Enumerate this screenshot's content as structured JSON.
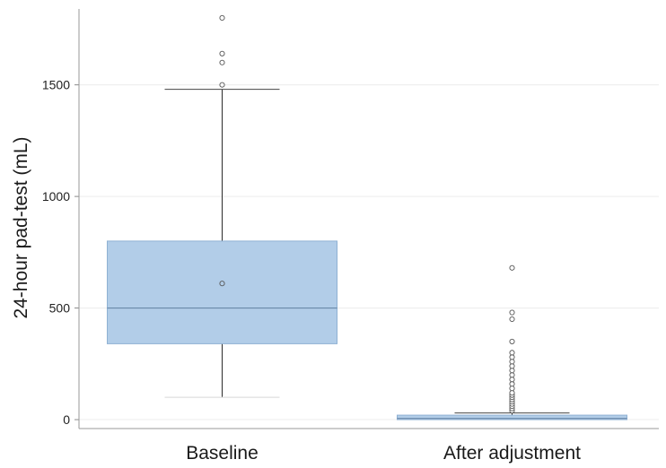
{
  "chart_data": {
    "type": "box",
    "ylabel": "24-hour pad-test (mL)",
    "xlabel": "",
    "ylim": [
      -40,
      1840
    ],
    "yticks": [
      0,
      500,
      1000,
      1500
    ],
    "grid": true,
    "box_color": "#b2cde8",
    "box_stroke": "#8fb1d3",
    "groups": [
      {
        "label": "Baseline",
        "whisker_low": 100,
        "q1": 340,
        "median": 500,
        "q3": 800,
        "whisker_high": 1480,
        "mean": 610,
        "outliers": [
          1500,
          1600,
          1640,
          1800
        ]
      },
      {
        "label": "After adjustment",
        "whisker_low": 0,
        "q1": 0,
        "median": 5,
        "q3": 20,
        "whisker_high": 30,
        "outliers": [
          40,
          50,
          60,
          70,
          80,
          90,
          100,
          110,
          120,
          140,
          160,
          180,
          200,
          220,
          240,
          260,
          280,
          300,
          350,
          450,
          480,
          680
        ]
      }
    ]
  }
}
